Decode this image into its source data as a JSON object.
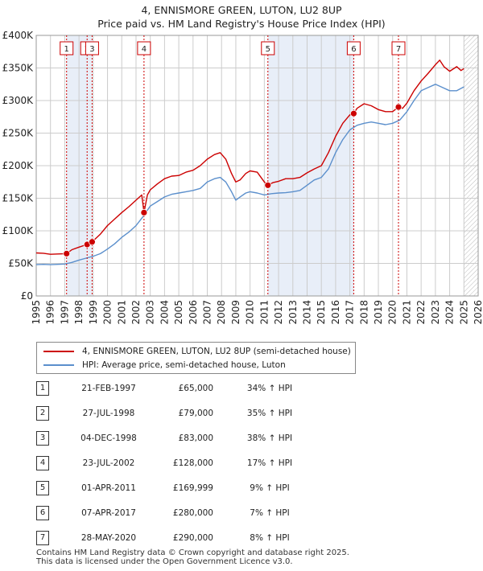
{
  "title_line1": "4, ENNISMORE GREEN, LUTON, LU2 8UP",
  "title_line2": "Price paid vs. HM Land Registry's House Price Index (HPI)",
  "colors": {
    "price": "#cc0000",
    "hpi": "#5b8fcc",
    "shade": "#e8eef8",
    "grid": "#cccccc"
  },
  "chart_data": {
    "type": "line",
    "title": "4, ENNISMORE GREEN, LUTON, LU2 8UP — Price paid vs. HM Land Registry's House Price Index (HPI)",
    "xlabel": "",
    "ylabel": "",
    "xlim": [
      1995,
      2026
    ],
    "ylim": [
      0,
      400000
    ],
    "y_ticks": [
      0,
      50000,
      100000,
      150000,
      200000,
      250000,
      300000,
      350000,
      400000
    ],
    "y_tick_labels": [
      "£0",
      "£50K",
      "£100K",
      "£150K",
      "£200K",
      "£250K",
      "£300K",
      "£350K",
      "£400K"
    ],
    "x_ticks": [
      1995,
      1996,
      1997,
      1998,
      1999,
      2000,
      2001,
      2002,
      2003,
      2004,
      2005,
      2006,
      2007,
      2008,
      2009,
      2010,
      2011,
      2012,
      2013,
      2014,
      2015,
      2016,
      2017,
      2018,
      2019,
      2020,
      2021,
      2022,
      2023,
      2024,
      2025,
      2026
    ],
    "series": [
      {
        "name": "4, ENNISMORE GREEN, LUTON, LU2 8UP (semi-detached house)",
        "x": [
          1995,
          1995.5,
          1996,
          1996.5,
          1997.13,
          1997.5,
          1998,
          1998.57,
          1998.92,
          1999.5,
          2000,
          2000.5,
          2001,
          2001.5,
          2002,
          2002.4,
          2002.56,
          2002.8,
          2003,
          2003.5,
          2004,
          2004.5,
          2005,
          2005.5,
          2006,
          2006.5,
          2007,
          2007.5,
          2007.9,
          2008.3,
          2008.7,
          2009,
          2009.3,
          2009.7,
          2010,
          2010.5,
          2011,
          2011.25,
          2011.6,
          2012,
          2012.5,
          2013,
          2013.5,
          2014,
          2014.5,
          2015,
          2015.5,
          2016,
          2016.5,
          2017,
          2017.27,
          2017.5,
          2018,
          2018.5,
          2019,
          2019.5,
          2020,
          2020.41,
          2020.7,
          2021,
          2021.5,
          2022,
          2022.5,
          2023,
          2023.3,
          2023.6,
          2024,
          2024.5,
          2024.8,
          2025
        ],
        "values": [
          66000,
          65500,
          64000,
          64500,
          65000,
          71000,
          75000,
          79000,
          83000,
          95000,
          108000,
          118000,
          128000,
          137000,
          147000,
          155000,
          128000,
          155000,
          163000,
          172000,
          180000,
          184000,
          185000,
          190000,
          193000,
          200000,
          210000,
          217000,
          220000,
          210000,
          188000,
          175000,
          178000,
          188000,
          192000,
          190000,
          175000,
          169999,
          174000,
          176000,
          180000,
          180000,
          182000,
          189000,
          195000,
          200000,
          220000,
          245000,
          265000,
          278000,
          280000,
          288000,
          295000,
          292000,
          286000,
          283000,
          283000,
          290000,
          288000,
          296000,
          315000,
          330000,
          342000,
          355000,
          362000,
          352000,
          345000,
          352000,
          346000,
          349000
        ]
      },
      {
        "name": "HPI: Average price, semi-detached house, Luton",
        "x": [
          1995,
          1995.5,
          1996,
          1996.5,
          1997,
          1997.5,
          1998,
          1998.5,
          1999,
          1999.5,
          2000,
          2000.5,
          2001,
          2001.5,
          2002,
          2002.5,
          2003,
          2003.5,
          2004,
          2004.5,
          2005,
          2005.5,
          2006,
          2006.5,
          2007,
          2007.5,
          2007.9,
          2008.3,
          2008.7,
          2009,
          2009.3,
          2009.7,
          2010,
          2010.5,
          2011,
          2011.5,
          2012,
          2012.5,
          2013,
          2013.5,
          2014,
          2014.5,
          2015,
          2015.5,
          2016,
          2016.5,
          2017,
          2017.5,
          2018,
          2018.5,
          2019,
          2019.5,
          2020,
          2020.5,
          2021,
          2021.5,
          2022,
          2022.5,
          2023,
          2023.5,
          2024,
          2024.5,
          2025
        ],
        "values": [
          48000,
          48500,
          48000,
          48500,
          49000,
          51500,
          55000,
          58000,
          61000,
          65000,
          72000,
          80000,
          90000,
          98000,
          108000,
          122000,
          138000,
          145000,
          152000,
          156000,
          158000,
          160000,
          162000,
          165000,
          175000,
          180000,
          182000,
          175000,
          160000,
          147000,
          152000,
          158000,
          160000,
          158000,
          155000,
          157000,
          158000,
          158500,
          160000,
          162000,
          170000,
          178000,
          182000,
          195000,
          220000,
          240000,
          255000,
          262000,
          265000,
          267000,
          265000,
          263000,
          265000,
          270000,
          283000,
          300000,
          315000,
          320000,
          325000,
          320000,
          315000,
          315000,
          321000
        ]
      }
    ],
    "sales_markers": [
      {
        "label": "1",
        "x": 1997.13,
        "value": 65000
      },
      {
        "label": "2",
        "x": 1998.57,
        "value": 79000
      },
      {
        "label": "3",
        "x": 1998.92,
        "value": 83000
      },
      {
        "label": "4",
        "x": 2002.56,
        "value": 128000
      },
      {
        "label": "5",
        "x": 2011.25,
        "value": 169999
      },
      {
        "label": "6",
        "x": 2017.27,
        "value": 280000
      },
      {
        "label": "7",
        "x": 2020.41,
        "value": 290000
      }
    ],
    "shaded_spans": [
      [
        1997.13,
        1998.92
      ],
      [
        2011.25,
        2017.27
      ]
    ],
    "hatched_from": 2025.0,
    "legend_position": "below-left"
  },
  "legend": {
    "price_label": "4, ENNISMORE GREEN, LUTON, LU2 8UP (semi-detached house)",
    "hpi_label": "HPI: Average price, semi-detached house, Luton"
  },
  "sales": [
    {
      "num": "1",
      "date": "21-FEB-1997",
      "price": "£65,000",
      "hpi": "34% ↑ HPI"
    },
    {
      "num": "2",
      "date": "27-JUL-1998",
      "price": "£79,000",
      "hpi": "35% ↑ HPI"
    },
    {
      "num": "3",
      "date": "04-DEC-1998",
      "price": "£83,000",
      "hpi": "38% ↑ HPI"
    },
    {
      "num": "4",
      "date": "23-JUL-2002",
      "price": "£128,000",
      "hpi": "17% ↑ HPI"
    },
    {
      "num": "5",
      "date": "01-APR-2011",
      "price": "£169,999",
      "hpi": "9% ↑ HPI"
    },
    {
      "num": "6",
      "date": "07-APR-2017",
      "price": "£280,000",
      "hpi": "7% ↑ HPI"
    },
    {
      "num": "7",
      "date": "28-MAY-2020",
      "price": "£290,000",
      "hpi": "8% ↑ HPI"
    }
  ],
  "footer_line1": "Contains HM Land Registry data © Crown copyright and database right 2025.",
  "footer_line2": "This data is licensed under the Open Government Licence v3.0."
}
